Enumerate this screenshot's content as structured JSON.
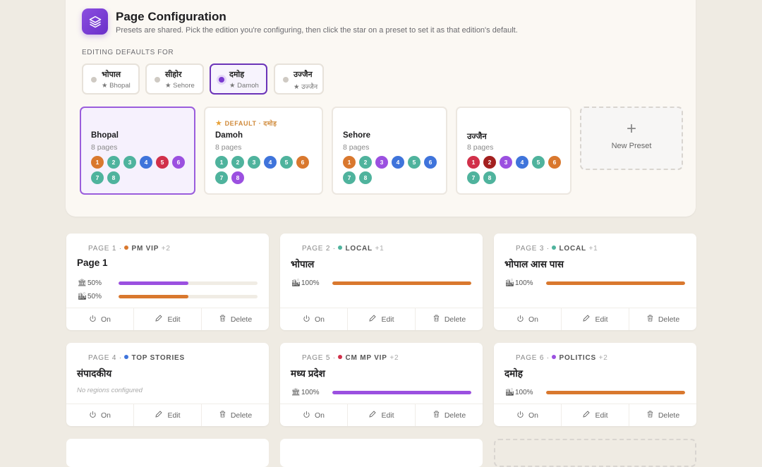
{
  "header": {
    "title": "Page Configuration",
    "subtitle": "Presets are shared. Pick the edition you're configuring, then click the star on a preset to set it as that edition's default.",
    "icon": "layers-icon"
  },
  "editions": {
    "label": "EDITING DEFAULTS FOR",
    "items": [
      {
        "name": "भोपाल",
        "default": "★ Bhopal",
        "active": false
      },
      {
        "name": "सीहोर",
        "default": "★ Sehore",
        "active": false
      },
      {
        "name": "दमोह",
        "default": "★ Damoh",
        "active": true
      },
      {
        "name": "उज्जैन",
        "default": "★ उज्जैन",
        "active": false
      }
    ]
  },
  "colors": {
    "orange": "#d9782e",
    "teal": "#4fb39d",
    "blue": "#3f74db",
    "red": "#d1304a",
    "purple": "#9b50e0",
    "darkred": "#a3201f",
    "accent": "#7a3ad0"
  },
  "presets": [
    {
      "name": "Bhopal",
      "count": "8 pages",
      "selected": true,
      "default_label": "",
      "badges": [
        [
          "1",
          "orange"
        ],
        [
          "2",
          "teal"
        ],
        [
          "3",
          "teal"
        ],
        [
          "4",
          "blue"
        ],
        [
          "5",
          "red"
        ],
        [
          "6",
          "purple"
        ],
        [
          "7",
          "teal"
        ],
        [
          "8",
          "teal"
        ]
      ]
    },
    {
      "name": "Damoh",
      "count": "8 pages",
      "selected": false,
      "default_label": "DEFAULT · दमोह",
      "badges": [
        [
          "1",
          "teal"
        ],
        [
          "2",
          "teal"
        ],
        [
          "3",
          "teal"
        ],
        [
          "4",
          "blue"
        ],
        [
          "5",
          "teal"
        ],
        [
          "6",
          "orange"
        ],
        [
          "7",
          "teal"
        ],
        [
          "8",
          "purple"
        ]
      ]
    },
    {
      "name": "Sehore",
      "count": "8 pages",
      "selected": false,
      "default_label": "",
      "badges": [
        [
          "1",
          "orange"
        ],
        [
          "2",
          "teal"
        ],
        [
          "3",
          "purple"
        ],
        [
          "4",
          "blue"
        ],
        [
          "5",
          "teal"
        ],
        [
          "6",
          "blue"
        ],
        [
          "7",
          "teal"
        ],
        [
          "8",
          "teal"
        ]
      ]
    },
    {
      "name": "उज्जैन",
      "count": "8 pages",
      "selected": false,
      "default_label": "",
      "badges": [
        [
          "1",
          "red"
        ],
        [
          "2",
          "darkred"
        ],
        [
          "3",
          "purple"
        ],
        [
          "4",
          "blue"
        ],
        [
          "5",
          "teal"
        ],
        [
          "6",
          "orange"
        ],
        [
          "7",
          "teal"
        ],
        [
          "8",
          "teal"
        ]
      ]
    }
  ],
  "new_preset": "New Preset",
  "actions": {
    "on": "On",
    "edit": "Edit",
    "delete": "Delete"
  },
  "pages": [
    {
      "page": "PAGE 1",
      "category": "PM VIP",
      "cat_color": "orange",
      "more": "+2",
      "title": "Page 1",
      "empty": "",
      "regions": [
        {
          "icon": "🏛",
          "pct": "50%",
          "value": 50,
          "color": "purple"
        },
        {
          "icon": "🏙",
          "pct": "50%",
          "value": 50,
          "color": "orange"
        }
      ]
    },
    {
      "page": "PAGE 2",
      "category": "LOCAL",
      "cat_color": "teal",
      "more": "+1",
      "title": "भोपाल",
      "empty": "",
      "regions": [
        {
          "icon": "🏙",
          "pct": "100%",
          "value": 100,
          "color": "orange"
        }
      ]
    },
    {
      "page": "PAGE 3",
      "category": "LOCAL",
      "cat_color": "teal",
      "more": "+1",
      "title": "भोपाल आस पास",
      "empty": "",
      "regions": [
        {
          "icon": "🏙",
          "pct": "100%",
          "value": 100,
          "color": "orange"
        }
      ]
    },
    {
      "page": "PAGE 4",
      "category": "TOP STORIES",
      "cat_color": "blue",
      "more": "",
      "title": "संपादकीय",
      "empty": "No regions configured",
      "regions": []
    },
    {
      "page": "PAGE 5",
      "category": "CM MP VIP",
      "cat_color": "red",
      "more": "+2",
      "title": "मध्य प्रदेश",
      "empty": "",
      "regions": [
        {
          "icon": "🏛",
          "pct": "100%",
          "value": 100,
          "color": "purple"
        }
      ]
    },
    {
      "page": "PAGE 6",
      "category": "POLITICS",
      "cat_color": "purple",
      "more": "+2",
      "title": "दमोह",
      "empty": "",
      "regions": [
        {
          "icon": "🏙",
          "pct": "100%",
          "value": 100,
          "color": "orange"
        }
      ]
    }
  ]
}
